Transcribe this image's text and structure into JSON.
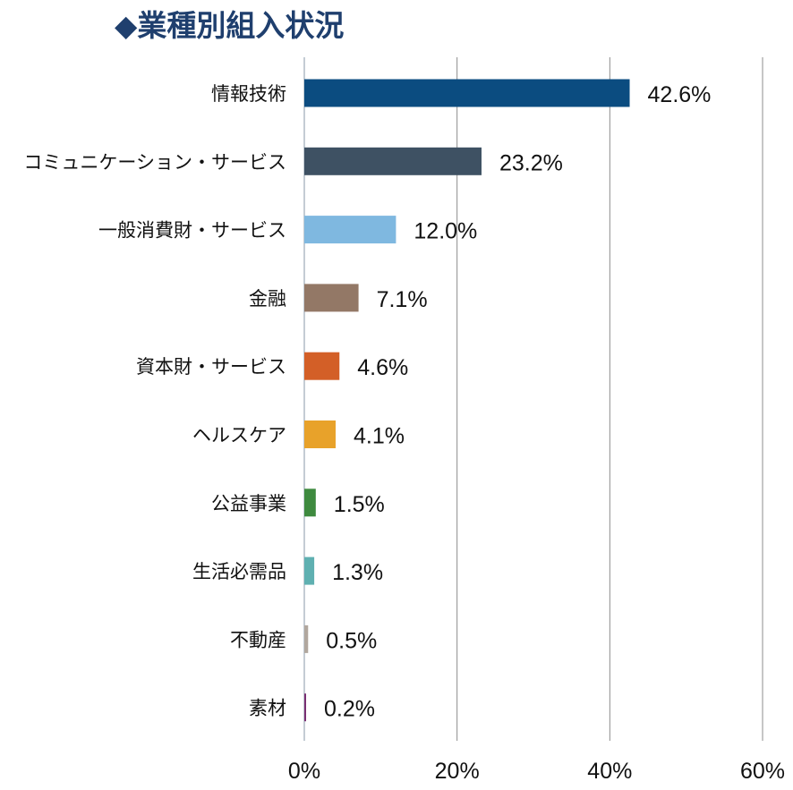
{
  "chart_data": {
    "type": "bar",
    "orientation": "horizontal",
    "title": "◆業種別組入状況",
    "categories": [
      "情報技術",
      "コミュニケーション・サービス",
      "一般消費財・サービス",
      "金融",
      "資本財・サービス",
      "ヘルスケア",
      "公益事業",
      "生活必需品",
      "不動産",
      "素材"
    ],
    "values": [
      42.6,
      23.2,
      12.0,
      7.1,
      4.6,
      4.1,
      1.5,
      1.3,
      0.5,
      0.2
    ],
    "value_labels": [
      "42.6%",
      "23.2%",
      "12.0%",
      "7.1%",
      "4.6%",
      "4.1%",
      "1.5%",
      "1.3%",
      "0.5%",
      "0.2%"
    ],
    "colors": [
      "#0b4c80",
      "#3e5163",
      "#7fb8e0",
      "#937866",
      "#d35f27",
      "#e8a22a",
      "#3e8a3f",
      "#5fb0b1",
      "#b1a79e",
      "#7a2f73"
    ],
    "xlim": [
      0,
      60
    ],
    "xticks": [
      0,
      20,
      40,
      60
    ],
    "xtick_labels": [
      "0%",
      "20%",
      "40%",
      "60%"
    ],
    "xlabel": "",
    "ylabel": "",
    "grid": true,
    "legend": "none"
  }
}
